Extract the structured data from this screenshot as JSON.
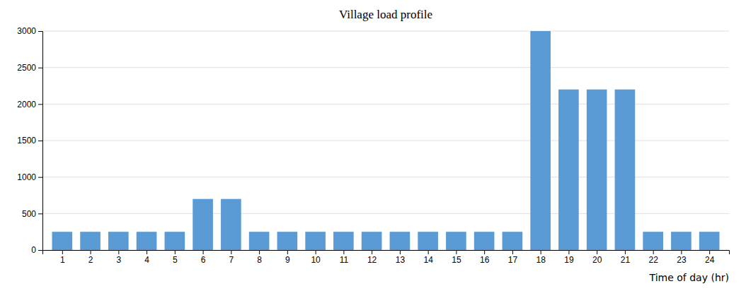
{
  "chart_data": {
    "type": "bar",
    "title": "Village load profile",
    "x_label": "Time of day (hr)",
    "x": [
      1,
      2,
      3,
      4,
      5,
      6,
      7,
      8,
      9,
      10,
      11,
      12,
      13,
      14,
      15,
      16,
      17,
      18,
      19,
      20,
      21,
      22,
      23,
      24
    ],
    "values": [
      250,
      250,
      250,
      250,
      250,
      700,
      700,
      250,
      250,
      250,
      250,
      250,
      250,
      250,
      250,
      250,
      250,
      3000,
      2200,
      2200,
      2200,
      250,
      250,
      250
    ],
    "color": "#5b9bd5",
    "xlim": [
      0.3,
      24.7
    ],
    "xticks": [
      1,
      2,
      3,
      4,
      5,
      6,
      7,
      8,
      9,
      10,
      11,
      12,
      13,
      14,
      15,
      16,
      17,
      18,
      19,
      20,
      21,
      22,
      23,
      24
    ],
    "ylim": [
      0,
      3000
    ],
    "yticks": [
      0,
      500,
      1000,
      1500,
      2000,
      2500,
      3000
    ],
    "grid": true
  }
}
